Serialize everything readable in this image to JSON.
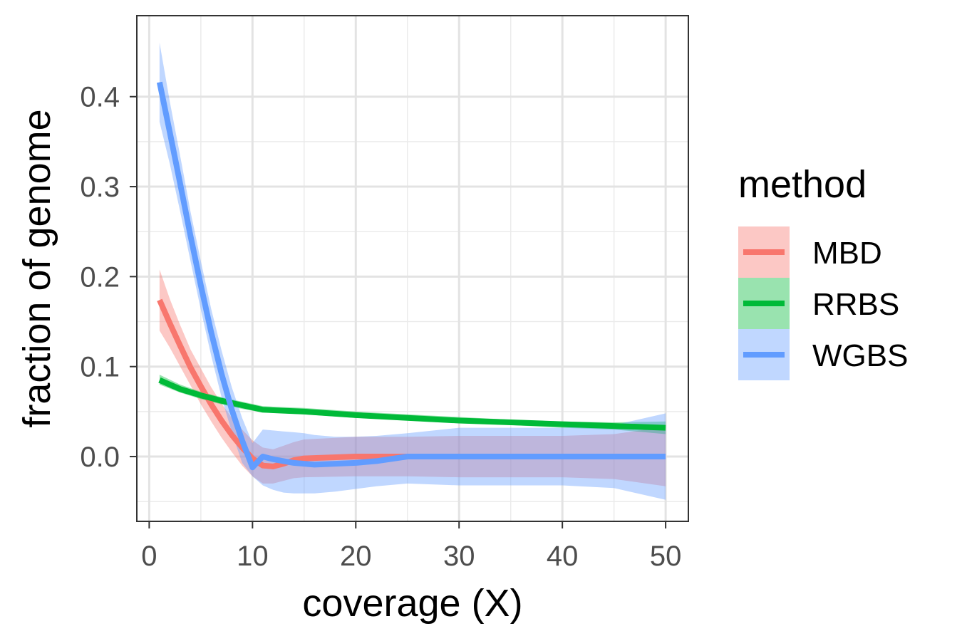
{
  "chart_data": {
    "type": "line",
    "xlabel": "coverage (X)",
    "ylabel": "fraction of genome",
    "xlim": [
      -1.2,
      52.2
    ],
    "ylim": [
      -0.072,
      0.49
    ],
    "xticks": [
      0,
      10,
      20,
      30,
      40,
      50
    ],
    "xtick_labels": [
      "0",
      "10",
      "20",
      "30",
      "40",
      "50"
    ],
    "yticks": [
      0.0,
      0.1,
      0.2,
      0.3,
      0.4
    ],
    "ytick_labels": [
      "0.0",
      "0.1",
      "0.2",
      "0.3",
      "0.4"
    ],
    "grid": true,
    "legend": {
      "title": "method",
      "position": "right"
    },
    "series": [
      {
        "name": "MBD",
        "color": "#F8766D",
        "x": [
          1,
          2,
          3,
          4,
          5,
          6,
          7,
          8,
          9,
          10,
          11,
          12,
          13,
          14,
          15,
          20,
          25,
          30,
          35,
          40,
          45,
          50
        ],
        "y": [
          0.174,
          0.148,
          0.123,
          0.099,
          0.078,
          0.058,
          0.04,
          0.024,
          0.01,
          -0.002,
          -0.01,
          -0.011,
          -0.008,
          -0.004,
          -0.002,
          0.0,
          0.0,
          0.0,
          0.0,
          0.0,
          0.0,
          0.0
        ],
        "lower": [
          0.14,
          0.121,
          0.1,
          0.079,
          0.058,
          0.039,
          0.021,
          0.005,
          -0.01,
          -0.022,
          -0.03,
          -0.03,
          -0.027,
          -0.024,
          -0.023,
          -0.022,
          -0.022,
          -0.023,
          -0.023,
          -0.023,
          -0.025,
          -0.033
        ],
        "upper": [
          0.208,
          0.175,
          0.146,
          0.119,
          0.098,
          0.077,
          0.059,
          0.043,
          0.03,
          0.018,
          0.01,
          0.008,
          0.012,
          0.016,
          0.019,
          0.022,
          0.022,
          0.023,
          0.023,
          0.023,
          0.025,
          0.033
        ]
      },
      {
        "name": "RRBS",
        "color": "#00BA38",
        "x": [
          1,
          3,
          5,
          7,
          9,
          11,
          13,
          15,
          20,
          25,
          30,
          35,
          40,
          45,
          50
        ],
        "y": [
          0.085,
          0.075,
          0.068,
          0.062,
          0.057,
          0.052,
          0.051,
          0.05,
          0.046,
          0.043,
          0.04,
          0.038,
          0.036,
          0.034,
          0.032
        ],
        "lower": [
          0.08,
          0.071,
          0.064,
          0.058,
          0.053,
          0.049,
          0.048,
          0.047,
          0.043,
          0.04,
          0.037,
          0.035,
          0.032,
          0.03,
          0.025
        ],
        "upper": [
          0.091,
          0.08,
          0.072,
          0.066,
          0.061,
          0.056,
          0.055,
          0.054,
          0.05,
          0.047,
          0.044,
          0.041,
          0.039,
          0.038,
          0.039
        ]
      },
      {
        "name": "WGBS",
        "color": "#619CFF",
        "x": [
          1,
          2,
          3,
          4,
          5,
          6,
          7,
          8,
          9,
          10,
          11,
          12,
          13,
          14,
          15,
          16,
          18,
          20,
          22,
          25,
          30,
          35,
          40,
          45,
          50
        ],
        "y": [
          0.416,
          0.36,
          0.303,
          0.245,
          0.19,
          0.138,
          0.092,
          0.052,
          0.018,
          -0.012,
          -0.0,
          -0.003,
          -0.005,
          -0.007,
          -0.008,
          -0.009,
          -0.008,
          -0.007,
          -0.005,
          0.0,
          0.0,
          0.0,
          0.0,
          0.0,
          0.0
        ],
        "lower": [
          0.372,
          0.325,
          0.272,
          0.217,
          0.163,
          0.112,
          0.066,
          0.027,
          -0.007,
          -0.022,
          -0.032,
          -0.037,
          -0.04,
          -0.041,
          -0.041,
          -0.041,
          -0.039,
          -0.036,
          -0.033,
          -0.03,
          -0.032,
          -0.032,
          -0.032,
          -0.035,
          -0.048
        ],
        "upper": [
          0.46,
          0.394,
          0.334,
          0.272,
          0.217,
          0.164,
          0.118,
          0.077,
          0.043,
          0.015,
          0.03,
          0.029,
          0.028,
          0.027,
          0.026,
          0.024,
          0.022,
          0.022,
          0.023,
          0.026,
          0.032,
          0.032,
          0.032,
          0.035,
          0.048
        ]
      }
    ]
  }
}
